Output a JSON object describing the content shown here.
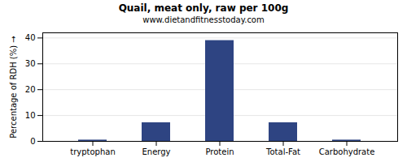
{
  "chart_data": {
    "type": "bar",
    "title": "Quail, meat only, raw per 100g",
    "subtitle": "www.dietandfitnesstoday.com",
    "ylabel": "Percentage of RDH (%)",
    "categories": [
      "tryptophan",
      "Energy",
      "Protein",
      "Total-Fat",
      "Carbohydrate"
    ],
    "values": [
      0.5,
      7.2,
      39.0,
      7.2,
      0.5
    ],
    "color": "#2e4482",
    "ylim": [
      0,
      42
    ],
    "yticks": [
      0,
      10,
      20,
      30,
      40
    ],
    "grid": true
  }
}
